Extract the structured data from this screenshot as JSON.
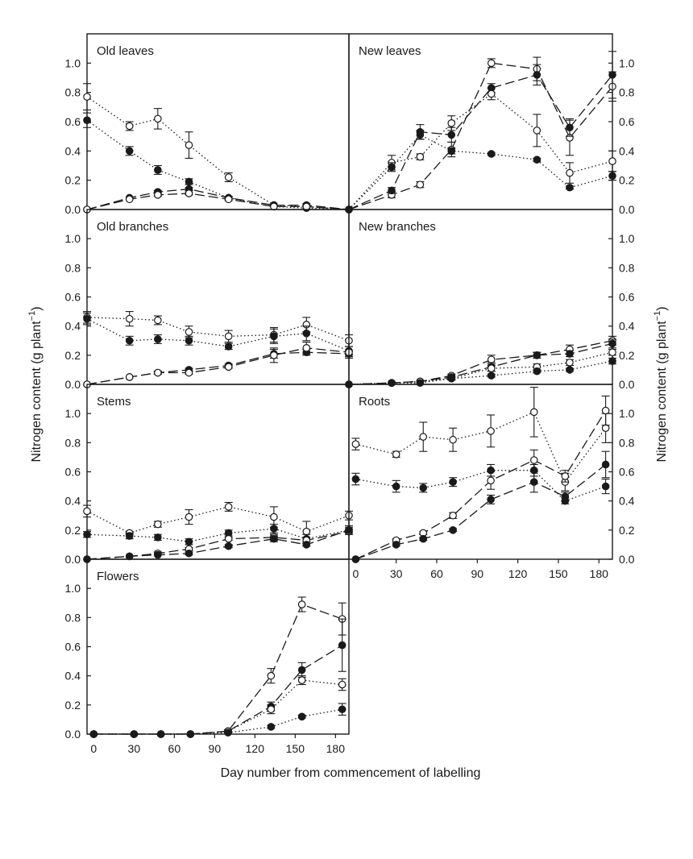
{
  "figure": {
    "xlabel": "Day number from commencement of labelling",
    "ylabel_left": "Nitrogen content (g plant",
    "ylabel_right": "Nitrogen content (g plant",
    "ylabel_sup": "−1",
    "ylabel_close": ")"
  },
  "chart_data": [
    {
      "type": "line",
      "title": "Old leaves",
      "xlim": [
        0,
        185
      ],
      "ylim": [
        0,
        1.2
      ],
      "xticks": [],
      "yticks": [
        "0.0",
        "0.2",
        "0.4",
        "0.6",
        "0.8",
        "1.0"
      ],
      "yaxis": "left",
      "series": [
        {
          "style": "dotted",
          "marker": "open",
          "x": [
            0,
            30,
            50,
            72,
            100,
            132,
            155,
            185
          ],
          "y": [
            0.77,
            0.57,
            0.62,
            0.44,
            0.22,
            0.03,
            0.02,
            0.0
          ],
          "err": [
            0.09,
            0.03,
            0.07,
            0.09,
            0.03,
            0,
            0,
            0
          ]
        },
        {
          "style": "dotted",
          "marker": "filled",
          "x": [
            0,
            30,
            50,
            72,
            100,
            132,
            155,
            185
          ],
          "y": [
            0.61,
            0.4,
            0.27,
            0.19,
            0.08,
            0.02,
            0.01,
            0.0
          ],
          "err": [
            0.05,
            0.03,
            0.03,
            0.02,
            0.01,
            0,
            0,
            0
          ]
        },
        {
          "style": "dashed",
          "marker": "filled",
          "x": [
            0,
            30,
            50,
            72,
            100,
            132,
            155,
            185
          ],
          "y": [
            0.0,
            0.08,
            0.12,
            0.14,
            0.08,
            0.03,
            0.03,
            0.0
          ],
          "err": [
            0,
            0,
            0.01,
            0.01,
            0.01,
            0,
            0.01,
            0
          ]
        },
        {
          "style": "dashed",
          "marker": "open",
          "x": [
            0,
            30,
            50,
            72,
            100,
            132,
            155,
            185
          ],
          "y": [
            0.0,
            0.07,
            0.1,
            0.11,
            0.07,
            0.02,
            0.02,
            0.0
          ],
          "err": [
            0,
            0,
            0.01,
            0.01,
            0.01,
            0,
            0,
            0
          ]
        }
      ]
    },
    {
      "type": "line",
      "title": "New leaves",
      "xlim": [
        0,
        185
      ],
      "ylim": [
        0,
        1.2
      ],
      "xticks": [],
      "yticks": [
        "0.0",
        "0.2",
        "0.4",
        "0.6",
        "0.8",
        "1.0"
      ],
      "yaxis": "right",
      "series": [
        {
          "style": "dashed",
          "marker": "open",
          "x": [
            0,
            30,
            50,
            72,
            100,
            132,
            155,
            185
          ],
          "y": [
            0.0,
            0.1,
            0.17,
            0.41,
            1.0,
            0.96,
            0.49,
            0.84
          ],
          "err": [
            0,
            0.02,
            0.02,
            0.05,
            0.03,
            0.08,
            0.12,
            0.1
          ]
        },
        {
          "style": "dashed",
          "marker": "filled",
          "x": [
            0,
            30,
            50,
            72,
            100,
            132,
            155,
            185
          ],
          "y": [
            0.0,
            0.13,
            0.53,
            0.51,
            0.83,
            0.92,
            0.56,
            0.92
          ],
          "err": [
            0,
            0.02,
            0.05,
            0.05,
            0.03,
            0.07,
            0.06,
            0.16
          ]
        },
        {
          "style": "dotted",
          "marker": "open",
          "x": [
            0,
            30,
            50,
            72,
            100,
            132,
            155,
            185
          ],
          "y": [
            0.0,
            0.32,
            0.36,
            0.59,
            0.79,
            0.54,
            0.25,
            0.33
          ],
          "err": [
            0,
            0.05,
            0.02,
            0.05,
            0.04,
            0.11,
            0.07,
            0.07
          ]
        },
        {
          "style": "dotted",
          "marker": "filled",
          "x": [
            0,
            30,
            50,
            72,
            100,
            132,
            155,
            185
          ],
          "y": [
            0.0,
            0.29,
            0.51,
            0.4,
            0.38,
            0.34,
            0.15,
            0.23
          ],
          "err": [
            0,
            0.03,
            0.03,
            0.02,
            0.01,
            0.01,
            0.01,
            0.03
          ]
        }
      ]
    },
    {
      "type": "line",
      "title": "Old branches",
      "xlim": [
        0,
        185
      ],
      "ylim": [
        0,
        1.2
      ],
      "xticks": [],
      "yticks": [
        "0.0",
        "0.2",
        "0.4",
        "0.6",
        "0.8",
        "1.0"
      ],
      "yaxis": "left",
      "series": [
        {
          "style": "dotted",
          "marker": "open",
          "x": [
            0,
            30,
            50,
            72,
            100,
            132,
            155,
            185
          ],
          "y": [
            0.46,
            0.45,
            0.44,
            0.36,
            0.33,
            0.34,
            0.41,
            0.3
          ],
          "err": [
            0.04,
            0.05,
            0.03,
            0.04,
            0.04,
            0.05,
            0.05,
            0.04
          ]
        },
        {
          "style": "dotted",
          "marker": "filled",
          "x": [
            0,
            30,
            50,
            72,
            100,
            132,
            155,
            185
          ],
          "y": [
            0.45,
            0.3,
            0.31,
            0.3,
            0.26,
            0.33,
            0.35,
            0.23
          ],
          "err": [
            0.04,
            0.03,
            0.03,
            0.03,
            0.02,
            0.05,
            0.05,
            0.03
          ]
        },
        {
          "style": "dashed",
          "marker": "filled",
          "x": [
            0,
            30,
            50,
            72,
            100,
            132,
            155,
            185
          ],
          "y": [
            0.0,
            0.05,
            0.08,
            0.1,
            0.13,
            0.21,
            0.22,
            0.21
          ],
          "err": [
            0,
            0,
            0.01,
            0.01,
            0.01,
            0.03,
            0.02,
            0.02
          ]
        },
        {
          "style": "dashed",
          "marker": "open",
          "x": [
            0,
            30,
            50,
            72,
            100,
            132,
            155,
            185
          ],
          "y": [
            0.0,
            0.05,
            0.08,
            0.08,
            0.12,
            0.2,
            0.25,
            0.22
          ],
          "err": [
            0,
            0,
            0.01,
            0.01,
            0.01,
            0.05,
            0.04,
            0.04
          ]
        }
      ]
    },
    {
      "type": "line",
      "title": "New branches",
      "xlim": [
        0,
        185
      ],
      "ylim": [
        0,
        1.2
      ],
      "xticks": [],
      "yticks": [
        "0.0",
        "0.2",
        "0.4",
        "0.6",
        "0.8",
        "1.0"
      ],
      "yaxis": "right",
      "series": [
        {
          "style": "dashed",
          "marker": "open",
          "x": [
            0,
            30,
            50,
            72,
            100,
            132,
            155,
            185
          ],
          "y": [
            0.0,
            0.01,
            0.02,
            0.06,
            0.17,
            0.2,
            0.24,
            0.3
          ],
          "err": [
            0,
            0,
            0,
            0.01,
            0.03,
            0.02,
            0.03,
            0.03
          ]
        },
        {
          "style": "dashed",
          "marker": "filled",
          "x": [
            0,
            30,
            50,
            72,
            100,
            132,
            155,
            185
          ],
          "y": [
            0.0,
            0.01,
            0.02,
            0.05,
            0.12,
            0.2,
            0.21,
            0.28
          ],
          "err": [
            0,
            0,
            0,
            0.01,
            0.03,
            0.02,
            0.02,
            0.03
          ]
        },
        {
          "style": "dotted",
          "marker": "open",
          "x": [
            0,
            30,
            50,
            72,
            100,
            132,
            155,
            185
          ],
          "y": [
            0.0,
            0.01,
            0.02,
            0.04,
            0.11,
            0.12,
            0.15,
            0.22
          ],
          "err": [
            0,
            0,
            0,
            0.01,
            0.02,
            0.02,
            0.02,
            0.02
          ]
        },
        {
          "style": "dotted",
          "marker": "filled",
          "x": [
            0,
            30,
            50,
            72,
            100,
            132,
            155,
            185
          ],
          "y": [
            0.0,
            0.01,
            0.01,
            0.04,
            0.06,
            0.09,
            0.1,
            0.16
          ],
          "err": [
            0,
            0,
            0,
            0.01,
            0.01,
            0.01,
            0.01,
            0.02
          ]
        }
      ]
    },
    {
      "type": "line",
      "title": "Stems",
      "xlim": [
        0,
        185
      ],
      "ylim": [
        0,
        1.2
      ],
      "xticks": [],
      "yticks": [
        "0.0",
        "0.2",
        "0.4",
        "0.6",
        "0.8",
        "1.0"
      ],
      "yaxis": "left",
      "series": [
        {
          "style": "dotted",
          "marker": "open",
          "x": [
            0,
            30,
            50,
            72,
            100,
            132,
            155,
            185
          ],
          "y": [
            0.33,
            0.18,
            0.24,
            0.29,
            0.36,
            0.29,
            0.19,
            0.3
          ],
          "err": [
            0.04,
            0.01,
            0.02,
            0.05,
            0.03,
            0.07,
            0.07,
            0.03
          ]
        },
        {
          "style": "dotted",
          "marker": "filled",
          "x": [
            0,
            30,
            50,
            72,
            100,
            132,
            155,
            185
          ],
          "y": [
            0.17,
            0.16,
            0.15,
            0.12,
            0.18,
            0.21,
            0.14,
            0.2
          ],
          "err": [
            0.02,
            0.02,
            0.02,
            0.02,
            0.02,
            0.03,
            0.03,
            0.03
          ]
        },
        {
          "style": "dashed",
          "marker": "open",
          "x": [
            0,
            30,
            50,
            72,
            100,
            132,
            155,
            185
          ],
          "y": [
            0.0,
            0.02,
            0.04,
            0.07,
            0.14,
            0.15,
            0.13,
            0.19
          ],
          "err": [
            0,
            0,
            0.01,
            0.01,
            0.01,
            0.02,
            0.02,
            0.02
          ]
        },
        {
          "style": "dashed",
          "marker": "filled",
          "x": [
            0,
            30,
            50,
            72,
            100,
            132,
            155,
            185
          ],
          "y": [
            0.0,
            0.02,
            0.03,
            0.04,
            0.09,
            0.14,
            0.1,
            0.2
          ],
          "err": [
            0,
            0,
            0,
            0.01,
            0.01,
            0.02,
            0.01,
            0.02
          ]
        }
      ]
    },
    {
      "type": "line",
      "title": "Roots",
      "xlim": [
        -5,
        190
      ],
      "ylim": [
        0,
        1.2
      ],
      "xticks": [
        "0",
        "30",
        "60",
        "90",
        "120",
        "150",
        "180"
      ],
      "yticks": [
        "0.0",
        "0.2",
        "0.4",
        "0.6",
        "0.8",
        "1.0"
      ],
      "yaxis": "right",
      "series": [
        {
          "style": "dotted",
          "marker": "open",
          "x": [
            0,
            30,
            50,
            72,
            100,
            132,
            155,
            185
          ],
          "y": [
            0.79,
            0.72,
            0.84,
            0.82,
            0.88,
            1.01,
            0.53,
            0.9
          ],
          "err": [
            0.04,
            0.02,
            0.1,
            0.08,
            0.11,
            0.17,
            0.06,
            0.1
          ]
        },
        {
          "style": "dotted",
          "marker": "filled",
          "x": [
            0,
            30,
            50,
            72,
            100,
            132,
            155,
            185
          ],
          "y": [
            0.55,
            0.5,
            0.49,
            0.53,
            0.61,
            0.61,
            0.4,
            0.5
          ],
          "err": [
            0.04,
            0.04,
            0.03,
            0.03,
            0.04,
            0.04,
            0.02,
            0.05
          ]
        },
        {
          "style": "dashed",
          "marker": "open",
          "x": [
            0,
            30,
            50,
            72,
            100,
            132,
            155,
            185
          ],
          "y": [
            0.0,
            0.13,
            0.18,
            0.3,
            0.54,
            0.68,
            0.57,
            1.02
          ],
          "err": [
            0,
            0.01,
            0.01,
            0.02,
            0.06,
            0.07,
            0.04,
            0.1
          ]
        },
        {
          "style": "dashed",
          "marker": "filled",
          "x": [
            0,
            30,
            50,
            72,
            100,
            132,
            155,
            185
          ],
          "y": [
            0.0,
            0.1,
            0.14,
            0.2,
            0.41,
            0.53,
            0.43,
            0.65
          ],
          "err": [
            0,
            0.01,
            0.01,
            0.01,
            0.03,
            0.07,
            0.03,
            0.09
          ]
        }
      ]
    },
    {
      "type": "line",
      "title": "Flowers",
      "xlim": [
        -5,
        190
      ],
      "ylim": [
        0,
        1.2
      ],
      "xticks": [
        "0",
        "30",
        "60",
        "90",
        "120",
        "150",
        "180"
      ],
      "yticks": [
        "0.0",
        "0.2",
        "0.4",
        "0.6",
        "0.8",
        "1.0"
      ],
      "yaxis": "left",
      "series": [
        {
          "style": "dashed",
          "marker": "open",
          "x": [
            0,
            30,
            50,
            72,
            100,
            132,
            155,
            185
          ],
          "y": [
            0.0,
            0.0,
            0.0,
            0.0,
            0.02,
            0.4,
            0.89,
            0.79
          ],
          "err": [
            0,
            0,
            0,
            0,
            0.01,
            0.05,
            0.05,
            0.11
          ]
        },
        {
          "style": "dashed",
          "marker": "filled",
          "x": [
            0,
            30,
            50,
            72,
            100,
            132,
            155,
            185
          ],
          "y": [
            0.0,
            0.0,
            0.0,
            0.0,
            0.02,
            0.19,
            0.44,
            0.61
          ],
          "err": [
            0,
            0,
            0,
            0,
            0.01,
            0.03,
            0.05,
            0.18
          ]
        },
        {
          "style": "dotted",
          "marker": "open",
          "x": [
            0,
            30,
            50,
            72,
            100,
            132,
            155,
            185
          ],
          "y": [
            0.0,
            0.0,
            0.0,
            0.0,
            0.02,
            0.17,
            0.37,
            0.34
          ],
          "err": [
            0,
            0,
            0,
            0,
            0.01,
            0.03,
            0.03,
            0.04
          ]
        },
        {
          "style": "dotted",
          "marker": "filled",
          "x": [
            0,
            30,
            50,
            72,
            100,
            132,
            155,
            185
          ],
          "y": [
            0.0,
            0.0,
            0.0,
            0.0,
            0.01,
            0.05,
            0.12,
            0.17
          ],
          "err": [
            0,
            0,
            0,
            0,
            0,
            0.01,
            0.01,
            0.04
          ]
        }
      ]
    }
  ]
}
